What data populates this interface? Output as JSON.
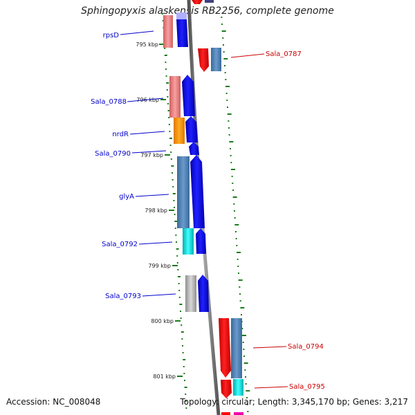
{
  "title": "Sphingopyxis alaskensis RB2256, complete genome",
  "accession": "Accession: NC_008048",
  "topology": "Topology: circular; Length: 3,345,170 bp; Genes: 3,217",
  "kbp_labels": [
    "795 kbp",
    "796 kbp",
    "797 kbp",
    "798 kbp",
    "799 kbp",
    "800 kbp",
    "801 kbp"
  ],
  "genes_left": [
    {
      "label": "rpsD"
    },
    {
      "label": "Sala_0788"
    },
    {
      "label": "nrdR"
    },
    {
      "label": "Sala_0790"
    },
    {
      "label": "glyA"
    },
    {
      "label": "Sala_0792"
    },
    {
      "label": "Sala_0793"
    }
  ],
  "genes_right": [
    {
      "label": "Sala_0787"
    },
    {
      "label": "Sala_0794"
    },
    {
      "label": "Sala_0795"
    }
  ],
  "colors": {
    "forward_label": "#0000cc",
    "reverse_label": "#cc0000",
    "tick": "#1a7a1a",
    "backbone": "#888888",
    "forward_arrow": "#0000ee",
    "reverse_arrow": "#ff0000",
    "cog_steelblue": "#4a7fb5",
    "cog_salmon": "#f08080",
    "cog_orange": "#ff9900",
    "cog_cyan": "#00d8d8",
    "cog_grey": "#b8b8b8",
    "cog_lavender": "#b0b0ff",
    "cog_magenta": "#ee00aa"
  }
}
